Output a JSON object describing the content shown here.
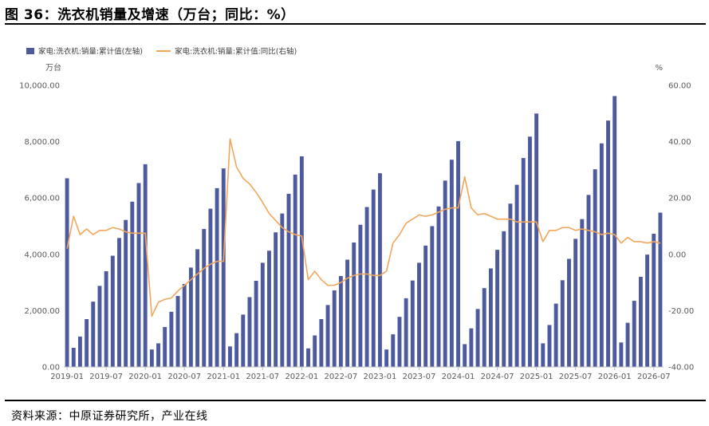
{
  "figure_title": "图 36：洗衣机销量及增速（万台；同比：%）",
  "source_note": "资料来源：中原证券研究所，产业在线",
  "chart_data": {
    "type": "bar+line",
    "left_unit": "万台",
    "right_unit": "%",
    "left_axis": {
      "min": 0,
      "max": 10000,
      "ticks": [
        "0.00",
        "2,000.00",
        "4,000.00",
        "6,000.00",
        "8,000.00",
        "10,000.00"
      ]
    },
    "right_axis": {
      "min": -40,
      "max": 60,
      "ticks": [
        "-40.00",
        "-20.00",
        "0.00",
        "20.00",
        "40.00",
        "60.00"
      ]
    },
    "x_tick_labels": [
      "2019-01",
      "2019-07",
      "2020-01",
      "2020-07",
      "2021-01",
      "2021-07",
      "2022-01",
      "2022-07",
      "2023-01",
      "2023-07",
      "2024-01",
      "2024-07",
      "2025-01",
      "2025-07",
      "2026-01",
      "2026-07"
    ],
    "legend_position": "top-left",
    "colors": {
      "bar": "#4e5a9e",
      "line": "#f2a65a",
      "axis": "#bfbfbf"
    },
    "series": [
      {
        "name": "家电:洗衣机:销量:累计值(左轴)",
        "axis": "left",
        "kind": "bar",
        "values": [
          6700,
          680,
          1080,
          1700,
          2320,
          2880,
          3400,
          3950,
          4580,
          5220,
          5870,
          6530,
          7200,
          620,
          840,
          1420,
          1960,
          2520,
          2950,
          3530,
          4180,
          4900,
          5620,
          6350,
          7050,
          730,
          1200,
          1860,
          2480,
          3060,
          3700,
          4130,
          4780,
          5450,
          6150,
          6830,
          7480,
          660,
          1120,
          1700,
          2200,
          2720,
          3230,
          3810,
          4420,
          5050,
          5680,
          6300,
          6880,
          620,
          1160,
          1780,
          2440,
          3070,
          3700,
          4310,
          5000,
          5700,
          6620,
          7360,
          8020,
          810,
          1370,
          2060,
          2800,
          3500,
          4160,
          4820,
          5800,
          6470,
          7420,
          8180,
          9000,
          840,
          1490,
          2250,
          3080,
          3840,
          4550,
          5250,
          6110,
          7020,
          7940,
          8750,
          9620,
          870,
          1570,
          2350,
          3200,
          3990,
          4730,
          5480
        ]
      },
      {
        "name": "家电:洗衣机:销量:累计值:同比(右轴)",
        "axis": "right",
        "kind": "line",
        "values": [
          2,
          13.5,
          7,
          9,
          7,
          8.5,
          8.5,
          9.5,
          9,
          8,
          7.5,
          7.5,
          7.5,
          -22,
          -17,
          -16,
          -15.5,
          -13,
          -11,
          -9,
          -7,
          -5,
          -3.5,
          -2.5,
          -2.5,
          41,
          31,
          27,
          25,
          22,
          18.5,
          14.5,
          12,
          9.5,
          8,
          7,
          6.5,
          -9,
          -6,
          -9,
          -11,
          -11,
          -10,
          -8.5,
          -7.5,
          -7,
          -7,
          -7.5,
          -7.5,
          -6,
          4,
          7,
          11,
          12.5,
          14,
          13.5,
          14,
          15,
          16,
          16.5,
          16.5,
          27.5,
          16.5,
          14,
          14.5,
          13.5,
          12.5,
          12.5,
          12.5,
          11.5,
          11.5,
          11.5,
          11.5,
          4.5,
          8.5,
          8.5,
          9.5,
          9.5,
          8.5,
          9,
          8.5,
          8,
          7,
          7.5,
          7,
          4,
          6,
          4.5,
          4.5,
          4,
          4.5,
          4
        ]
      }
    ]
  }
}
